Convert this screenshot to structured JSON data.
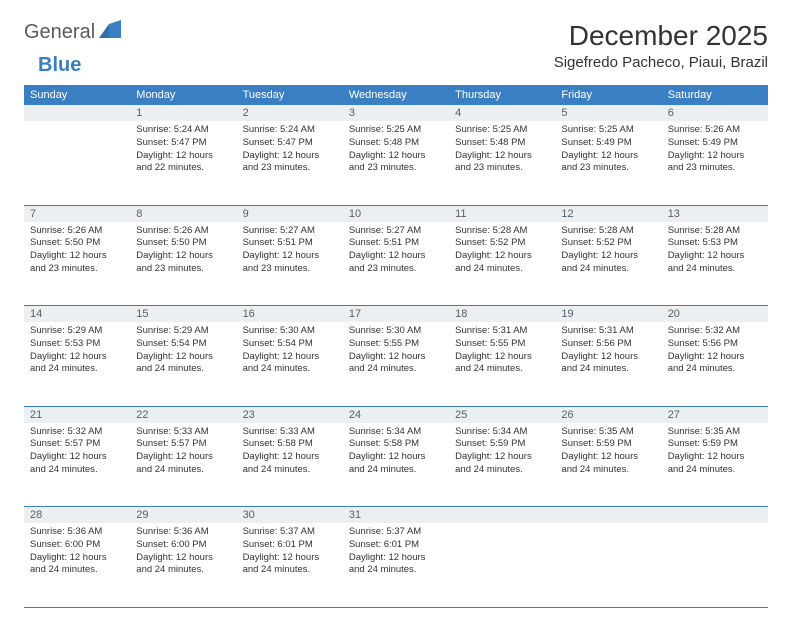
{
  "logo": {
    "general": "General",
    "blue": "Blue"
  },
  "title": "December 2025",
  "location": "Sigefredo Pacheco, Piaui, Brazil",
  "colors": {
    "header_bg": "#3a7fc4",
    "header_text": "#ffffff",
    "daynum_bg": "#eceff1",
    "daynum_text": "#556066",
    "rule": "#3a7fc4",
    "body_text": "#333333",
    "logo_gray": "#5a5a5a",
    "logo_blue": "#3a7fc4"
  },
  "day_headers": [
    "Sunday",
    "Monday",
    "Tuesday",
    "Wednesday",
    "Thursday",
    "Friday",
    "Saturday"
  ],
  "weeks": [
    {
      "nums": [
        "",
        "1",
        "2",
        "3",
        "4",
        "5",
        "6"
      ],
      "cells": [
        null,
        {
          "sunrise": "5:24 AM",
          "sunset": "5:47 PM",
          "daylight": "12 hours and 22 minutes."
        },
        {
          "sunrise": "5:24 AM",
          "sunset": "5:47 PM",
          "daylight": "12 hours and 23 minutes."
        },
        {
          "sunrise": "5:25 AM",
          "sunset": "5:48 PM",
          "daylight": "12 hours and 23 minutes."
        },
        {
          "sunrise": "5:25 AM",
          "sunset": "5:48 PM",
          "daylight": "12 hours and 23 minutes."
        },
        {
          "sunrise": "5:25 AM",
          "sunset": "5:49 PM",
          "daylight": "12 hours and 23 minutes."
        },
        {
          "sunrise": "5:26 AM",
          "sunset": "5:49 PM",
          "daylight": "12 hours and 23 minutes."
        }
      ]
    },
    {
      "nums": [
        "7",
        "8",
        "9",
        "10",
        "11",
        "12",
        "13"
      ],
      "cells": [
        {
          "sunrise": "5:26 AM",
          "sunset": "5:50 PM",
          "daylight": "12 hours and 23 minutes."
        },
        {
          "sunrise": "5:26 AM",
          "sunset": "5:50 PM",
          "daylight": "12 hours and 23 minutes."
        },
        {
          "sunrise": "5:27 AM",
          "sunset": "5:51 PM",
          "daylight": "12 hours and 23 minutes."
        },
        {
          "sunrise": "5:27 AM",
          "sunset": "5:51 PM",
          "daylight": "12 hours and 23 minutes."
        },
        {
          "sunrise": "5:28 AM",
          "sunset": "5:52 PM",
          "daylight": "12 hours and 24 minutes."
        },
        {
          "sunrise": "5:28 AM",
          "sunset": "5:52 PM",
          "daylight": "12 hours and 24 minutes."
        },
        {
          "sunrise": "5:28 AM",
          "sunset": "5:53 PM",
          "daylight": "12 hours and 24 minutes."
        }
      ]
    },
    {
      "nums": [
        "14",
        "15",
        "16",
        "17",
        "18",
        "19",
        "20"
      ],
      "cells": [
        {
          "sunrise": "5:29 AM",
          "sunset": "5:53 PM",
          "daylight": "12 hours and 24 minutes."
        },
        {
          "sunrise": "5:29 AM",
          "sunset": "5:54 PM",
          "daylight": "12 hours and 24 minutes."
        },
        {
          "sunrise": "5:30 AM",
          "sunset": "5:54 PM",
          "daylight": "12 hours and 24 minutes."
        },
        {
          "sunrise": "5:30 AM",
          "sunset": "5:55 PM",
          "daylight": "12 hours and 24 minutes."
        },
        {
          "sunrise": "5:31 AM",
          "sunset": "5:55 PM",
          "daylight": "12 hours and 24 minutes."
        },
        {
          "sunrise": "5:31 AM",
          "sunset": "5:56 PM",
          "daylight": "12 hours and 24 minutes."
        },
        {
          "sunrise": "5:32 AM",
          "sunset": "5:56 PM",
          "daylight": "12 hours and 24 minutes."
        }
      ]
    },
    {
      "nums": [
        "21",
        "22",
        "23",
        "24",
        "25",
        "26",
        "27"
      ],
      "cells": [
        {
          "sunrise": "5:32 AM",
          "sunset": "5:57 PM",
          "daylight": "12 hours and 24 minutes."
        },
        {
          "sunrise": "5:33 AM",
          "sunset": "5:57 PM",
          "daylight": "12 hours and 24 minutes."
        },
        {
          "sunrise": "5:33 AM",
          "sunset": "5:58 PM",
          "daylight": "12 hours and 24 minutes."
        },
        {
          "sunrise": "5:34 AM",
          "sunset": "5:58 PM",
          "daylight": "12 hours and 24 minutes."
        },
        {
          "sunrise": "5:34 AM",
          "sunset": "5:59 PM",
          "daylight": "12 hours and 24 minutes."
        },
        {
          "sunrise": "5:35 AM",
          "sunset": "5:59 PM",
          "daylight": "12 hours and 24 minutes."
        },
        {
          "sunrise": "5:35 AM",
          "sunset": "5:59 PM",
          "daylight": "12 hours and 24 minutes."
        }
      ]
    },
    {
      "nums": [
        "28",
        "29",
        "30",
        "31",
        "",
        "",
        ""
      ],
      "cells": [
        {
          "sunrise": "5:36 AM",
          "sunset": "6:00 PM",
          "daylight": "12 hours and 24 minutes."
        },
        {
          "sunrise": "5:36 AM",
          "sunset": "6:00 PM",
          "daylight": "12 hours and 24 minutes."
        },
        {
          "sunrise": "5:37 AM",
          "sunset": "6:01 PM",
          "daylight": "12 hours and 24 minutes."
        },
        {
          "sunrise": "5:37 AM",
          "sunset": "6:01 PM",
          "daylight": "12 hours and 24 minutes."
        },
        null,
        null,
        null
      ]
    }
  ],
  "labels": {
    "sunrise": "Sunrise:",
    "sunset": "Sunset:",
    "daylight": "Daylight:"
  }
}
